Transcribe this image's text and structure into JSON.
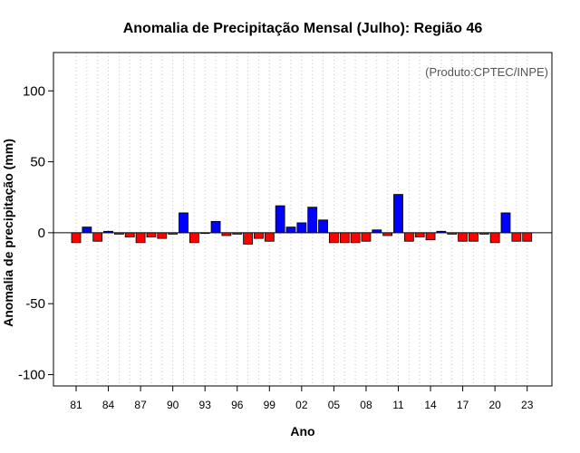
{
  "chart_data": {
    "type": "bar",
    "title": "Anomalia de Precipitação Mensal (Julho): Região 46",
    "xlabel": "Ano",
    "ylabel": "Anomalia de precipitação (mm)",
    "source_note": "(Produto:CPTEC/INPE)",
    "ylim": [
      -108,
      127
    ],
    "yticks": [
      -100,
      -50,
      0,
      50,
      100
    ],
    "ytick_labels": [
      "-100",
      "-50",
      "0",
      "50",
      "100"
    ],
    "xtick_labels": [
      "81",
      "84",
      "87",
      "90",
      "93",
      "96",
      "99",
      "02",
      "05",
      "08",
      "11",
      "14",
      "17",
      "20",
      "23"
    ],
    "xtick_every": 3,
    "years": [
      1981,
      1982,
      1983,
      1984,
      1985,
      1986,
      1987,
      1988,
      1989,
      1990,
      1991,
      1992,
      1993,
      1994,
      1995,
      1996,
      1997,
      1998,
      1999,
      2000,
      2001,
      2002,
      2003,
      2004,
      2005,
      2006,
      2007,
      2008,
      2009,
      2010,
      2011,
      2012,
      2013,
      2014,
      2015,
      2016,
      2017,
      2018,
      2019,
      2020,
      2021,
      2022,
      2023
    ],
    "values": [
      -7,
      4,
      -6,
      1,
      -1,
      -3,
      -7,
      -3,
      -4,
      -1,
      14,
      -7,
      0,
      8,
      -2,
      -1,
      -8,
      -4,
      -6,
      19,
      4,
      7,
      18,
      9,
      -7,
      -7,
      -7,
      -6,
      2,
      -2,
      27,
      -6,
      -3,
      -5,
      1,
      -1,
      -6,
      -6,
      -1,
      -7,
      14,
      -6,
      -6
    ],
    "positive_color": "#0000ff",
    "negative_color": "#ff0000",
    "grid": "vertical dotted"
  }
}
